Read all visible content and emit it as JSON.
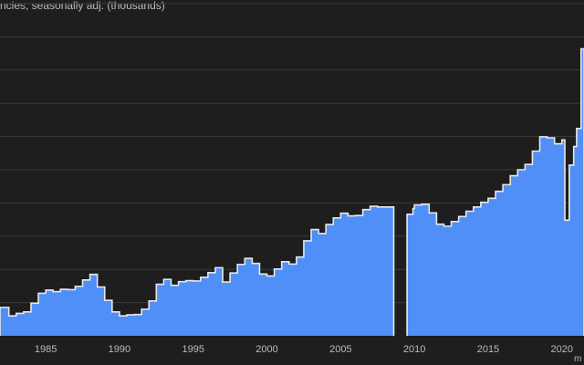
{
  "title": "ncies, seasonally adj. (thousands)",
  "unit_label": "m",
  "colors": {
    "background": "#1e1e1e",
    "fill": "#4f8ff7",
    "outline": "#e8e8e8",
    "grid": "#3a3a3a",
    "text": "#bdbdbd"
  },
  "chart_data": {
    "type": "area",
    "title": "ncies, seasonally adj. (thousands)",
    "xlabel": "",
    "ylabel": "",
    "grid": true,
    "legend": "none",
    "xlim": [
      1981.9,
      2021.5
    ],
    "ylim": [
      0,
      10000
    ],
    "x_ticks": [
      "1985",
      "1990",
      "1995",
      "2000",
      "2005",
      "2010",
      "2015",
      "2020"
    ],
    "x": [
      1981.9,
      1982.5,
      1983,
      1983.5,
      1984,
      1984.5,
      1985,
      1985.5,
      1986,
      1986.5,
      1987,
      1987.5,
      1988,
      1988.5,
      1989,
      1989.5,
      1990,
      1990.5,
      1991,
      1991.5,
      1992,
      1992.5,
      1993,
      1993.5,
      1994,
      1994.5,
      1995,
      1995.5,
      1996,
      1996.5,
      1997,
      1997.5,
      1998,
      1998.5,
      1999,
      1999.5,
      2000,
      2000.5,
      2001,
      2001.5,
      2002,
      2002.5,
      2003,
      2003.5,
      2004,
      2004.5,
      2005,
      2005.5,
      2006,
      2006.5,
      2007,
      2007.5,
      2008,
      2008.3,
      2008.6,
      2009,
      2009.5,
      2009.9,
      2010,
      2010.5,
      2011,
      2011.5,
      2012,
      2012.5,
      2013,
      2013.5,
      2014,
      2014.5,
      2015,
      2015.5,
      2016,
      2016.5,
      2017,
      2017.5,
      2018,
      2018.5,
      2019,
      2019.5,
      2020,
      2020.2,
      2020.5,
      2020.8,
      2021,
      2021.3
    ],
    "values": [
      855,
      600,
      675,
      720,
      980,
      1280,
      1375,
      1330,
      1400,
      1390,
      1490,
      1680,
      1850,
      1470,
      1065,
      720,
      600,
      630,
      640,
      800,
      1050,
      1550,
      1700,
      1520,
      1630,
      1660,
      1650,
      1760,
      1900,
      2050,
      1620,
      1890,
      2150,
      2330,
      2180,
      1860,
      1800,
      2010,
      2230,
      2160,
      2370,
      2860,
      3200,
      3080,
      3350,
      3550,
      3690,
      3610,
      3620,
      3800,
      3900,
      3880,
      3880,
      null,
      null,
      null,
      3660,
      3830,
      3940,
      3960,
      3700,
      3360,
      3300,
      3440,
      3590,
      3750,
      3880,
      4020,
      4140,
      4350,
      4550,
      4820,
      5000,
      5160,
      5560,
      5990,
      5960,
      5780,
      5900,
      3480,
      5140,
      5700,
      6240,
      8640
    ],
    "gap": [
      2008.6,
      2009.9
    ]
  }
}
